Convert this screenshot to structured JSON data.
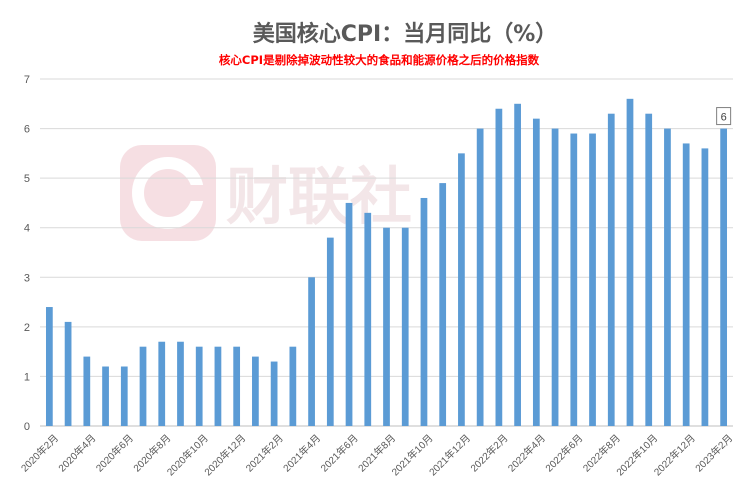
{
  "chart_data": {
    "type": "bar",
    "title": "美国核心CPI：当月同比（%）",
    "subtitle": "核心CPI是剔除掉波动性较大的食品和能源价格之后的价格指数",
    "categories": [
      "2020年2月",
      "2020年3月",
      "2020年4月",
      "2020年5月",
      "2020年6月",
      "2020年7月",
      "2020年8月",
      "2020年9月",
      "2020年10月",
      "2020年11月",
      "2020年12月",
      "2021年1月",
      "2021年2月",
      "2021年3月",
      "2021年4月",
      "2021年5月",
      "2021年6月",
      "2021年7月",
      "2021年8月",
      "2021年9月",
      "2021年10月",
      "2021年11月",
      "2021年12月",
      "2022年1月",
      "2022年2月",
      "2022年3月",
      "2022年4月",
      "2022年5月",
      "2022年6月",
      "2022年7月",
      "2022年8月",
      "2022年9月",
      "2022年10月",
      "2022年11月",
      "2022年12月",
      "2023年1月",
      "2023年2月"
    ],
    "x_tick_labels": [
      "2020年2月",
      "2020年4月",
      "2020年6月",
      "2020年8月",
      "2020年10月",
      "2020年12月",
      "2021年2月",
      "2021年4月",
      "2021年6月",
      "2021年8月",
      "2021年10月",
      "2021年12月",
      "2022年2月",
      "2022年4月",
      "2022年6月",
      "2022年8月",
      "2022年10月",
      "2022年12月",
      "2023年2月"
    ],
    "values": [
      2.4,
      2.1,
      1.4,
      1.2,
      1.2,
      1.6,
      1.7,
      1.7,
      1.6,
      1.6,
      1.6,
      1.4,
      1.3,
      1.6,
      3.0,
      3.8,
      4.5,
      4.3,
      4.0,
      4.0,
      4.6,
      4.9,
      5.5,
      6.0,
      6.4,
      6.5,
      6.2,
      6.0,
      5.9,
      5.9,
      6.3,
      6.6,
      6.3,
      6.0,
      5.7,
      5.6,
      6.0
    ],
    "ylim": [
      0,
      7
    ],
    "yticks": [
      0,
      1,
      2,
      3,
      4,
      5,
      6,
      7
    ],
    "grid": true,
    "bar_color": "#5b9bd5",
    "data_label": "6",
    "watermark": "财联社"
  }
}
